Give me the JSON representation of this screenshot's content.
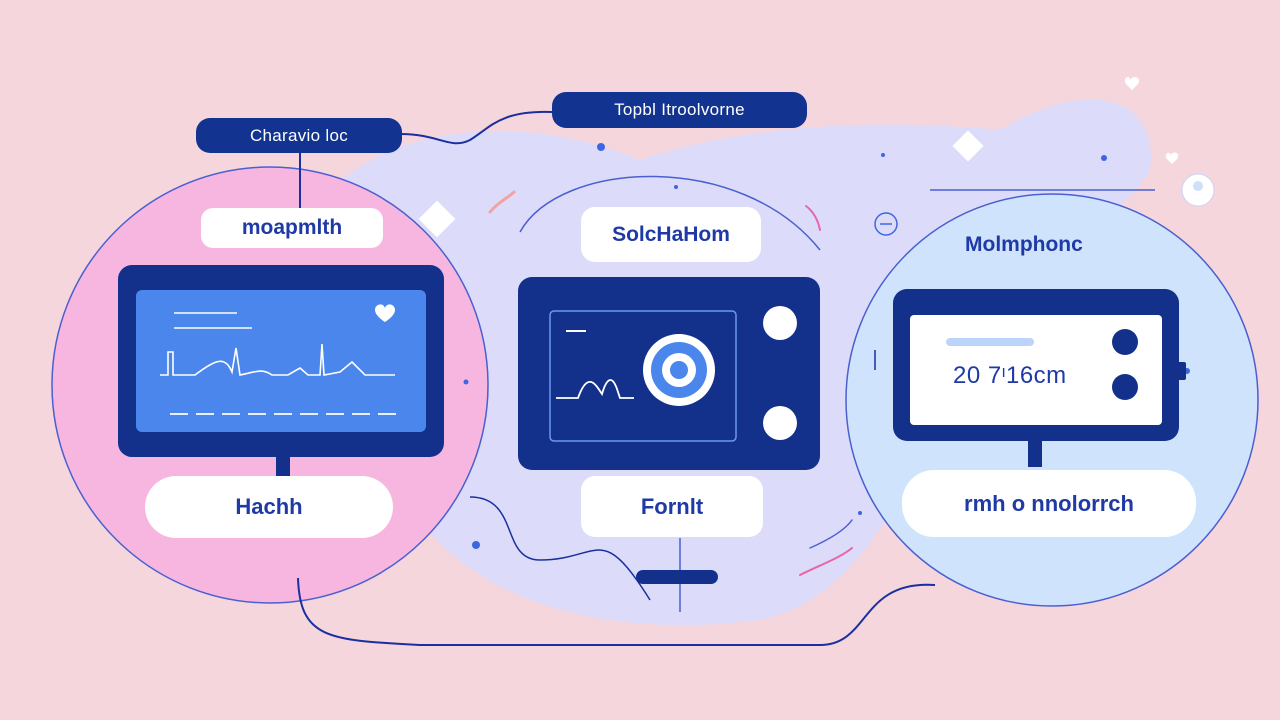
{
  "tags": {
    "left": "Charavio loc",
    "center": "Topbl Itroolvorne"
  },
  "left_panel": {
    "title": "moapmlth",
    "label": "Hachh"
  },
  "center_panel": {
    "title": "SolcHaHom",
    "label": "Fornlt"
  },
  "right_panel": {
    "title": "Molmphonc",
    "readout": "20 7ᶦ16cm",
    "label": "rmh o nnolorrch"
  },
  "colors": {
    "background": "#f5d6dc",
    "navy": "#13318a",
    "screen_blue": "#4a86ec",
    "pink_blob": "#f6b6e0",
    "lavender_blob": "#dcdcfa",
    "sky_blob": "#cfe4fc"
  },
  "icons": [
    "heart-icon",
    "target-icon",
    "camera-lens-icon"
  ]
}
